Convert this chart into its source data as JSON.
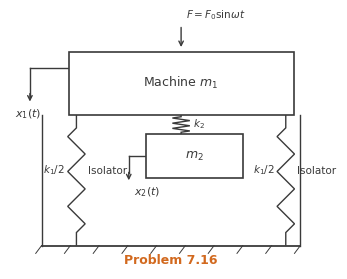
{
  "title": "Problem 7.16",
  "title_color": "#d2691e",
  "bg_color": "#ffffff",
  "machine_label": "Machine $m_1$",
  "absorber_label": "$m_2$",
  "force_label": "$F = F_0\\mathrm{sin}\\omega t$",
  "x1_label": "$x_1(t)$",
  "x2_label": "$x_2(t)$",
  "k1_left_label": "$k_1/2$",
  "k1_right_label": "$k_1/2$",
  "k2_label": "$k_2$",
  "isolator_left_label": "Isolator",
  "isolator_right_label": "Isolator",
  "line_color": "#3a3a3a",
  "figsize": [
    3.47,
    2.79
  ],
  "dpi": 100
}
